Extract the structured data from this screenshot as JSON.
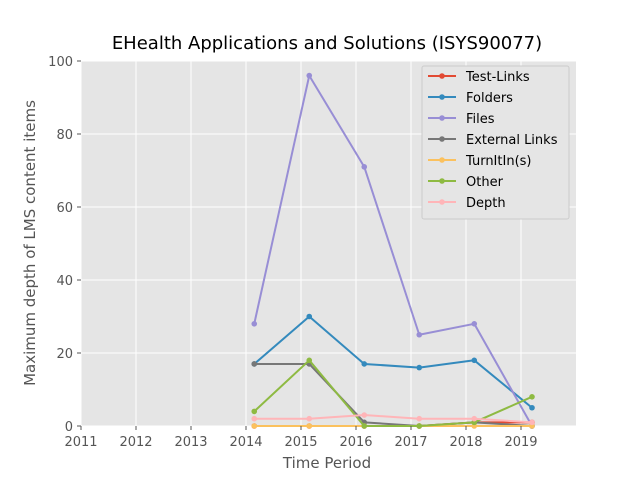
{
  "colors": {
    "plot_background": "#e5e5e5",
    "grid": "#ffffff",
    "text": "#555555"
  },
  "chart_data": {
    "type": "line",
    "title": "EHealth Applications and Solutions (ISYS90077)",
    "xlabel": "Time Period",
    "ylabel": "Maximum depth of LMS content items",
    "xlim": [
      2011,
      2020
    ],
    "ylim": [
      0,
      100
    ],
    "x_ticks": [
      "2011",
      "2012",
      "2013",
      "2014",
      "2015",
      "2016",
      "2017",
      "2018",
      "2019"
    ],
    "y_ticks": [
      "0",
      "20",
      "40",
      "60",
      "80",
      "100"
    ],
    "grid": true,
    "legend_position": "upper right",
    "x": [
      2014.15,
      2015.15,
      2016.15,
      2017.15,
      2018.15,
      2019.2
    ],
    "series": [
      {
        "name": "Test-Links",
        "color": "#e24a33",
        "values": [
          0,
          0,
          0,
          0,
          1,
          1
        ]
      },
      {
        "name": "Folders",
        "color": "#348abd",
        "values": [
          17,
          30,
          17,
          16,
          18,
          5
        ]
      },
      {
        "name": "Files",
        "color": "#988ed5",
        "values": [
          28,
          96,
          71,
          25,
          28,
          0
        ]
      },
      {
        "name": "External Links",
        "color": "#777777",
        "values": [
          17,
          17,
          1,
          0,
          1,
          0
        ]
      },
      {
        "name": "TurnItIn(s)",
        "color": "#fbc15e",
        "values": [
          0,
          0,
          0,
          0,
          0,
          0
        ]
      },
      {
        "name": "Other",
        "color": "#8eba42",
        "values": [
          4,
          18,
          0,
          0,
          1,
          8
        ]
      },
      {
        "name": "Depth",
        "color": "#ffb5b8",
        "values": [
          2,
          2,
          3,
          2,
          2,
          1
        ]
      }
    ]
  }
}
